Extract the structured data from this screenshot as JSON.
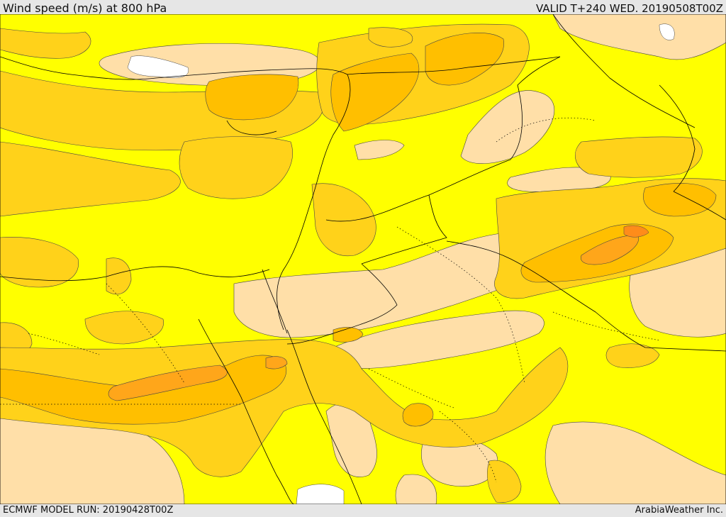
{
  "header": {
    "title": "Wind speed (m/s) at 800 hPa",
    "valid": "VALID T+240 WED. 20190508T00Z"
  },
  "footer": {
    "model_run": "ECMWF MODEL RUN: 20190428T00Z",
    "credit": "ArabiaWeather Inc."
  },
  "colors": {
    "background": "#ffff00",
    "light": "#ffdfa8",
    "medium": "#ffd21a",
    "strong": "#ffbf00",
    "stronger": "#ffa61a",
    "strongest": "#ff8c1a",
    "lines": "#000000"
  }
}
